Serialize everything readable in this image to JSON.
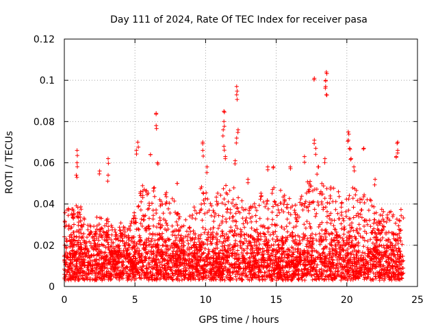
{
  "chart_data": {
    "type": "scatter",
    "title": "Day 111 of 2024, Rate Of TEC Index for receiver pasa",
    "xlabel": "GPS time / hours",
    "ylabel": "ROTI / TECUs",
    "xlim": [
      0,
      25
    ],
    "ylim": [
      0,
      0.12
    ],
    "x_ticks": [
      0,
      5,
      10,
      15,
      20,
      25
    ],
    "x_tick_labels": [
      "0",
      "5",
      "10",
      "15",
      "20",
      "25"
    ],
    "y_ticks": [
      0,
      0.02,
      0.04,
      0.06,
      0.08,
      0.1,
      0.12
    ],
    "y_tick_labels": [
      "0",
      "0.02",
      "0.04",
      "0.06",
      "0.08",
      "0.1",
      "0.12"
    ],
    "grid": true,
    "marker": "+",
    "series": [
      {
        "name": "ROTI",
        "color": "#ff0000",
        "x_range": [
          0,
          24
        ],
        "baseline_band": [
          0.003,
          0.03
        ],
        "upper_envelope": [
          [
            0.0,
            0.04
          ],
          [
            0.5,
            0.038
          ],
          [
            1.0,
            0.042
          ],
          [
            1.5,
            0.032
          ],
          [
            2.0,
            0.03
          ],
          [
            2.5,
            0.036
          ],
          [
            3.0,
            0.034
          ],
          [
            3.5,
            0.028
          ],
          [
            4.0,
            0.032
          ],
          [
            4.5,
            0.03
          ],
          [
            5.0,
            0.04
          ],
          [
            5.5,
            0.05
          ],
          [
            6.0,
            0.046
          ],
          [
            6.5,
            0.05
          ],
          [
            7.0,
            0.044
          ],
          [
            7.5,
            0.05
          ],
          [
            8.0,
            0.036
          ],
          [
            8.5,
            0.032
          ],
          [
            9.0,
            0.036
          ],
          [
            9.5,
            0.05
          ],
          [
            10.0,
            0.046
          ],
          [
            10.5,
            0.04
          ],
          [
            11.0,
            0.05
          ],
          [
            11.5,
            0.052
          ],
          [
            12.0,
            0.048
          ],
          [
            12.5,
            0.044
          ],
          [
            13.0,
            0.042
          ],
          [
            13.5,
            0.044
          ],
          [
            14.0,
            0.048
          ],
          [
            14.5,
            0.046
          ],
          [
            15.0,
            0.05
          ],
          [
            15.5,
            0.046
          ],
          [
            16.0,
            0.044
          ],
          [
            16.5,
            0.04
          ],
          [
            17.0,
            0.05
          ],
          [
            17.5,
            0.052
          ],
          [
            18.0,
            0.056
          ],
          [
            18.5,
            0.05
          ],
          [
            19.0,
            0.048
          ],
          [
            19.5,
            0.046
          ],
          [
            20.0,
            0.05
          ],
          [
            20.5,
            0.048
          ],
          [
            21.0,
            0.046
          ],
          [
            21.5,
            0.044
          ],
          [
            22.0,
            0.04
          ],
          [
            22.5,
            0.038
          ],
          [
            23.0,
            0.036
          ],
          [
            23.5,
            0.04
          ],
          [
            24.0,
            0.038
          ]
        ],
        "peaks": [
          [
            0.9,
            0.066
          ],
          [
            0.9,
            0.06
          ],
          [
            0.85,
            0.054
          ],
          [
            2.5,
            0.056
          ],
          [
            3.1,
            0.062
          ],
          [
            3.1,
            0.054
          ],
          [
            6.1,
            0.064
          ],
          [
            6.5,
            0.084
          ],
          [
            6.5,
            0.078
          ],
          [
            6.6,
            0.06
          ],
          [
            5.2,
            0.07
          ],
          [
            5.1,
            0.066
          ],
          [
            9.8,
            0.07
          ],
          [
            9.8,
            0.066
          ],
          [
            10.1,
            0.058
          ],
          [
            11.3,
            0.085
          ],
          [
            11.3,
            0.08
          ],
          [
            11.25,
            0.076
          ],
          [
            11.3,
            0.068
          ],
          [
            11.4,
            0.063
          ],
          [
            12.2,
            0.097
          ],
          [
            12.2,
            0.093
          ],
          [
            12.3,
            0.076
          ],
          [
            12.2,
            0.072
          ],
          [
            12.1,
            0.061
          ],
          [
            14.4,
            0.058
          ],
          [
            14.8,
            0.058
          ],
          [
            16.0,
            0.058
          ],
          [
            17.0,
            0.063
          ],
          [
            17.7,
            0.101
          ],
          [
            17.7,
            0.071
          ],
          [
            17.8,
            0.067
          ],
          [
            18.0,
            0.058
          ],
          [
            18.55,
            0.104
          ],
          [
            18.5,
            0.1
          ],
          [
            18.5,
            0.097
          ],
          [
            18.55,
            0.093
          ],
          [
            18.45,
            0.062
          ],
          [
            20.1,
            0.075
          ],
          [
            20.1,
            0.071
          ],
          [
            20.2,
            0.067
          ],
          [
            21.2,
            0.067
          ],
          [
            20.5,
            0.058
          ],
          [
            23.6,
            0.07
          ],
          [
            23.6,
            0.066
          ],
          [
            23.5,
            0.063
          ],
          [
            20.3,
            0.062
          ],
          [
            8.0,
            0.05
          ],
          [
            13.0,
            0.052
          ],
          [
            22.0,
            0.052
          ]
        ]
      }
    ]
  }
}
